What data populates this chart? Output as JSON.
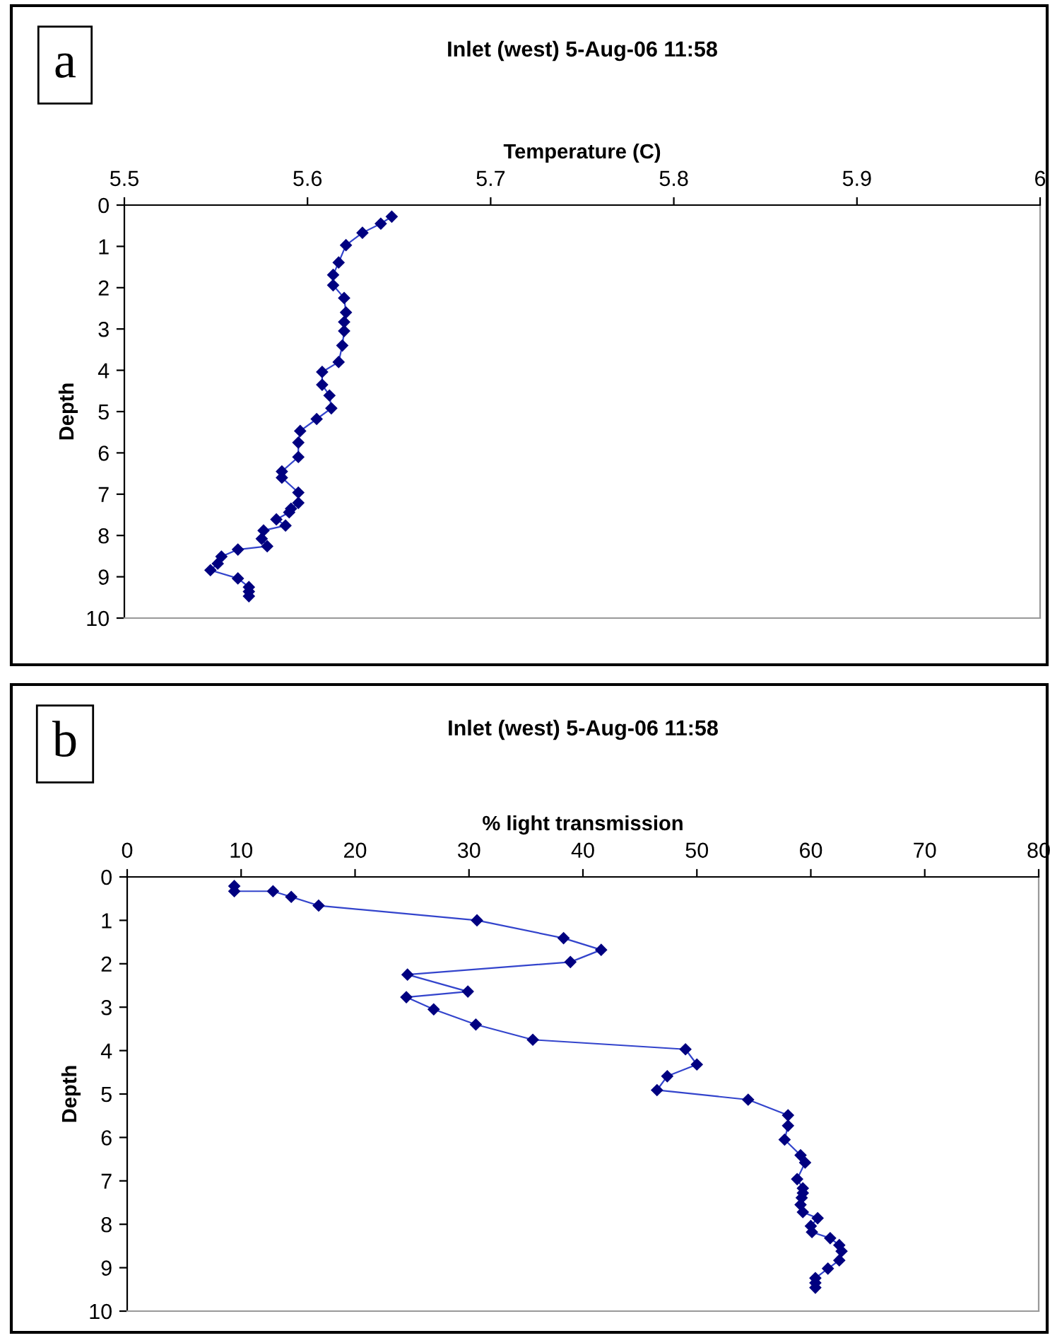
{
  "chart_data": [
    {
      "type": "line",
      "title": "Inlet (west) 5-Aug-06 11:58",
      "xlabel": "Temperature (C)",
      "ylabel": "Depth",
      "annotations": [
        "a"
      ],
      "x": [
        5.646,
        5.64,
        5.63,
        5.621,
        5.617,
        5.614,
        5.614,
        5.62,
        5.621,
        5.62,
        5.62,
        5.619,
        5.617,
        5.608,
        5.608,
        5.612,
        5.613,
        5.605,
        5.596,
        5.595,
        5.595,
        5.586,
        5.586,
        5.595,
        5.595,
        5.591,
        5.59,
        5.583,
        5.588,
        5.576,
        5.575,
        5.578,
        5.562,
        5.553,
        5.551,
        5.547,
        5.562,
        5.568,
        5.568,
        5.568
      ],
      "series": [
        {
          "color": "#000080",
          "values": [
            0.28,
            0.45,
            0.67,
            0.97,
            1.39,
            1.69,
            1.94,
            2.25,
            2.6,
            2.83,
            3.05,
            3.4,
            3.8,
            4.04,
            4.35,
            4.61,
            4.92,
            5.18,
            5.47,
            5.75,
            6.1,
            6.45,
            6.6,
            6.96,
            7.21,
            7.35,
            7.44,
            7.61,
            7.76,
            7.88,
            8.08,
            8.26,
            8.34,
            8.51,
            8.68,
            8.84,
            9.04,
            9.25,
            9.36,
            9.47
          ]
        }
      ],
      "xlim": [
        5.5,
        6
      ],
      "xticks": [
        5.5,
        5.6,
        5.7,
        5.8,
        5.9,
        6
      ],
      "ylim": [
        10,
        0
      ],
      "yticks": [
        0,
        1,
        2,
        3,
        4,
        5,
        6,
        7,
        8,
        9,
        10
      ],
      "marker": "diamond",
      "line_style": "solid",
      "grid": false,
      "legend": false
    },
    {
      "type": "line",
      "title": "Inlet (west) 5-Aug-06 11:58",
      "xlabel": "% light transmission",
      "ylabel": "Depth",
      "annotations": [
        "b"
      ],
      "x": [
        9.4,
        9.4,
        12.8,
        14.4,
        16.8,
        30.7,
        38.3,
        41.6,
        38.9,
        24.6,
        29.9,
        24.5,
        26.9,
        30.6,
        35.6,
        49.0,
        50.0,
        47.4,
        46.5,
        54.5,
        58.0,
        58.0,
        57.7,
        59.1,
        59.5,
        58.8,
        59.3,
        59.3,
        59.2,
        59.1,
        59.3,
        60.6,
        60.0,
        60.1,
        61.7,
        62.5,
        62.7,
        62.5,
        61.5,
        60.4,
        60.4,
        60.4
      ],
      "series": [
        {
          "color": "#000080",
          "values": [
            0.21,
            0.33,
            0.33,
            0.46,
            0.66,
            1.0,
            1.41,
            1.68,
            1.96,
            2.25,
            2.64,
            2.77,
            3.05,
            3.4,
            3.75,
            3.97,
            4.32,
            4.59,
            4.91,
            5.13,
            5.49,
            5.73,
            6.05,
            6.41,
            6.58,
            6.96,
            7.17,
            7.28,
            7.39,
            7.55,
            7.72,
            7.86,
            8.04,
            8.18,
            8.32,
            8.48,
            8.62,
            8.83,
            9.02,
            9.24,
            9.35,
            9.46
          ]
        }
      ],
      "xlim": [
        0,
        80
      ],
      "xticks": [
        0,
        10,
        20,
        30,
        40,
        50,
        60,
        70,
        80
      ],
      "ylim": [
        10,
        0
      ],
      "yticks": [
        0,
        1,
        2,
        3,
        4,
        5,
        6,
        7,
        8,
        9,
        10
      ],
      "marker": "diamond",
      "line_style": "solid",
      "grid": false,
      "legend": false
    }
  ]
}
